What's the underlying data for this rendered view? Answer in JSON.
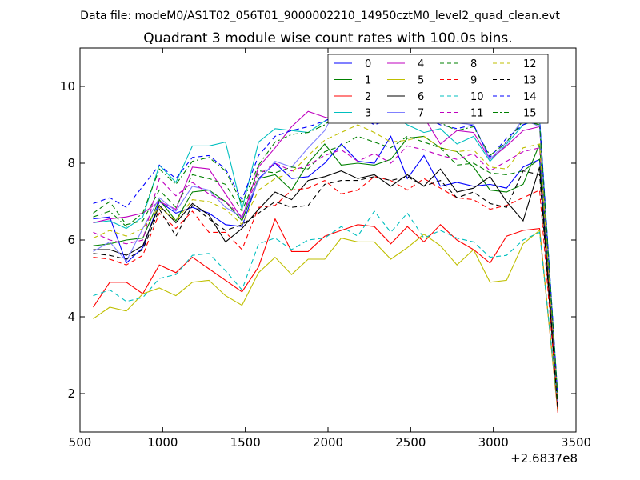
{
  "chart_data": {
    "type": "line",
    "suptitle": "Data file: modeM0/AS1T02_056T01_9000002210_14950cztM0_level2_quad_clean.evt",
    "title": "Quadrant 3 module wise count rates with 100.0s bins.",
    "xlabel": "",
    "ylabel": "",
    "x_offset_label": "+2.6837e8",
    "xlim": [
      500,
      3500
    ],
    "ylim": [
      1,
      11
    ],
    "xticks": [
      500,
      1000,
      1500,
      2000,
      2500,
      3000,
      3500
    ],
    "yticks": [
      2,
      4,
      6,
      8,
      10
    ],
    "grid": false,
    "legend_position": "top-right",
    "legend_columns": 4,
    "x": [
      580,
      680,
      780,
      880,
      980,
      1080,
      1180,
      1280,
      1380,
      1480,
      1580,
      1680,
      1780,
      1880,
      1980,
      2080,
      2180,
      2280,
      2380,
      2480,
      2580,
      2680,
      2780,
      2880,
      2980,
      3080,
      3180,
      3280,
      3390
    ],
    "series": [
      {
        "name": "0",
        "color": "#0000ff",
        "dash": "solid",
        "values": [
          6.55,
          6.6,
          5.4,
          5.8,
          7.0,
          6.7,
          6.85,
          6.7,
          6.4,
          6.35,
          7.6,
          8.0,
          7.6,
          7.65,
          8.0,
          8.5,
          8.05,
          8.0,
          8.7,
          7.6,
          8.2,
          7.4,
          7.5,
          7.4,
          7.45,
          7.35,
          7.9,
          8.1,
          1.6
        ]
      },
      {
        "name": "1",
        "color": "#008000",
        "dash": "solid",
        "values": [
          5.85,
          5.9,
          6.0,
          6.05,
          7.05,
          6.5,
          7.25,
          7.3,
          7.0,
          6.5,
          7.6,
          7.7,
          7.3,
          8.0,
          8.5,
          7.95,
          8.0,
          7.95,
          8.1,
          8.65,
          8.7,
          8.4,
          8.3,
          7.9,
          7.3,
          7.25,
          7.45,
          8.5,
          1.7
        ]
      },
      {
        "name": "2",
        "color": "#ff0000",
        "dash": "solid",
        "values": [
          4.25,
          4.9,
          4.9,
          4.6,
          5.35,
          5.15,
          5.55,
          5.25,
          4.95,
          4.65,
          5.3,
          6.55,
          5.7,
          5.7,
          6.1,
          6.25,
          6.4,
          6.35,
          5.9,
          6.35,
          5.95,
          6.4,
          6.0,
          5.75,
          5.4,
          6.1,
          6.25,
          6.3,
          1.5
        ]
      },
      {
        "name": "3",
        "color": "#00bfbf",
        "dash": "solid",
        "values": [
          6.45,
          6.5,
          6.3,
          6.6,
          7.95,
          7.5,
          8.45,
          8.45,
          8.55,
          6.8,
          8.55,
          8.9,
          8.85,
          8.8,
          9.1,
          9.3,
          9.2,
          9.45,
          9.3,
          9.0,
          8.8,
          8.9,
          8.5,
          8.7,
          8.05,
          8.5,
          9.0,
          9.15,
          1.9
        ]
      },
      {
        "name": "4",
        "color": "#bf00bf",
        "dash": "solid",
        "values": [
          6.45,
          6.55,
          6.6,
          6.7,
          7.0,
          6.8,
          7.9,
          7.85,
          7.2,
          6.55,
          7.9,
          8.4,
          8.95,
          9.35,
          9.2,
          9.1,
          9.3,
          9.4,
          9.05,
          9.15,
          9.2,
          8.5,
          8.85,
          8.8,
          8.1,
          8.45,
          8.85,
          8.95,
          1.8
        ]
      },
      {
        "name": "5",
        "color": "#bfbf00",
        "dash": "solid",
        "values": [
          3.95,
          4.25,
          4.15,
          4.6,
          4.75,
          4.55,
          4.9,
          4.95,
          4.55,
          4.3,
          5.15,
          5.55,
          5.1,
          5.5,
          5.5,
          6.05,
          5.95,
          5.95,
          5.5,
          5.8,
          6.15,
          5.85,
          5.35,
          5.75,
          4.9,
          4.95,
          5.9,
          6.25,
          1.55
        ]
      },
      {
        "name": "6",
        "color": "#000000",
        "dash": "solid",
        "values": [
          5.75,
          5.75,
          5.6,
          5.85,
          6.9,
          6.45,
          6.95,
          6.65,
          5.95,
          6.3,
          6.8,
          7.25,
          7.05,
          7.55,
          7.65,
          7.8,
          7.6,
          7.7,
          7.4,
          7.7,
          7.4,
          7.85,
          7.25,
          7.35,
          7.65,
          7.0,
          6.5,
          7.9,
          1.6
        ]
      },
      {
        "name": "7",
        "color": "#8080ff",
        "dash": "solid",
        "values": [
          5.7,
          5.95,
          5.45,
          6.3,
          7.1,
          6.75,
          7.4,
          7.3,
          6.85,
          6.6,
          7.55,
          8.05,
          7.9,
          8.4,
          8.85,
          9.7,
          9.95,
          10.05,
          9.2,
          9.1,
          9.6,
          9.2,
          9.05,
          9.0,
          8.1,
          8.55,
          9.15,
          8.95,
          1.8
        ]
      },
      {
        "name": "8",
        "color": "#008000",
        "dash": "dashed",
        "values": [
          6.7,
          7.0,
          6.4,
          6.5,
          7.3,
          6.85,
          7.7,
          7.6,
          7.45,
          6.75,
          7.8,
          7.75,
          7.9,
          7.85,
          8.3,
          8.45,
          8.7,
          8.55,
          8.4,
          8.7,
          8.55,
          8.4,
          7.95,
          8.0,
          7.75,
          7.7,
          7.8,
          8.1,
          1.9
        ]
      },
      {
        "name": "9",
        "color": "#ff0000",
        "dash": "dashed",
        "values": [
          5.55,
          5.5,
          5.35,
          5.6,
          6.7,
          6.3,
          6.75,
          6.2,
          6.2,
          5.75,
          6.85,
          6.9,
          7.3,
          7.35,
          7.55,
          7.2,
          7.3,
          7.65,
          7.55,
          7.3,
          7.6,
          7.35,
          7.1,
          7.05,
          6.8,
          6.9,
          7.1,
          7.3,
          1.6
        ]
      },
      {
        "name": "10",
        "color": "#00bfbf",
        "dash": "dashed",
        "values": [
          4.55,
          4.7,
          4.4,
          4.5,
          5.0,
          5.1,
          5.6,
          5.65,
          5.2,
          4.7,
          5.9,
          6.05,
          5.75,
          6.0,
          6.05,
          6.35,
          6.1,
          6.75,
          6.2,
          6.7,
          6.05,
          6.25,
          6.05,
          5.95,
          5.55,
          5.6,
          6.0,
          6.2,
          1.65
        ]
      },
      {
        "name": "11",
        "color": "#bf00bf",
        "dash": "dashed",
        "values": [
          6.2,
          6.0,
          5.9,
          6.0,
          7.6,
          7.15,
          7.5,
          7.2,
          7.0,
          6.6,
          7.7,
          8.0,
          7.8,
          7.95,
          8.2,
          8.35,
          8.05,
          8.25,
          8.0,
          8.45,
          8.35,
          8.2,
          8.1,
          8.25,
          7.8,
          8.05,
          8.3,
          8.4,
          1.75
        ]
      },
      {
        "name": "12",
        "color": "#bfbf00",
        "dash": "dashed",
        "values": [
          6.05,
          6.25,
          6.1,
          6.3,
          6.85,
          6.5,
          7.05,
          7.0,
          6.8,
          6.4,
          7.3,
          7.6,
          7.75,
          8.2,
          8.6,
          8.8,
          9.0,
          8.8,
          8.55,
          8.6,
          8.7,
          8.4,
          8.3,
          8.35,
          7.9,
          7.85,
          8.4,
          8.5,
          1.85
        ]
      },
      {
        "name": "13",
        "color": "#000000",
        "dash": "dashed",
        "values": [
          5.65,
          5.6,
          5.5,
          5.75,
          6.8,
          6.1,
          6.9,
          6.55,
          6.25,
          6.4,
          6.7,
          7.0,
          6.85,
          6.9,
          7.45,
          7.55,
          7.55,
          7.65,
          7.55,
          7.65,
          7.4,
          7.55,
          7.1,
          7.25,
          6.95,
          6.85,
          7.8,
          7.7,
          1.55
        ]
      },
      {
        "name": "14",
        "color": "#0000ff",
        "dash": "dashed",
        "values": [
          6.95,
          7.1,
          6.85,
          7.4,
          7.95,
          7.6,
          8.15,
          8.2,
          7.85,
          7.05,
          8.2,
          8.7,
          8.85,
          8.95,
          9.1,
          9.3,
          9.25,
          9.0,
          9.15,
          9.05,
          9.2,
          9.0,
          8.9,
          9.0,
          8.15,
          8.65,
          9.0,
          9.15,
          1.9
        ]
      },
      {
        "name": "15",
        "color": "#008000",
        "dash": "dashdot",
        "values": [
          6.6,
          6.75,
          6.35,
          6.7,
          7.85,
          7.45,
          8.05,
          8.15,
          7.8,
          6.95,
          7.95,
          8.55,
          8.75,
          8.8,
          9.0,
          9.35,
          9.8,
          9.4,
          9.3,
          9.1,
          9.25,
          9.05,
          8.85,
          8.95,
          8.2,
          8.55,
          9.1,
          9.0,
          1.85
        ]
      }
    ]
  }
}
